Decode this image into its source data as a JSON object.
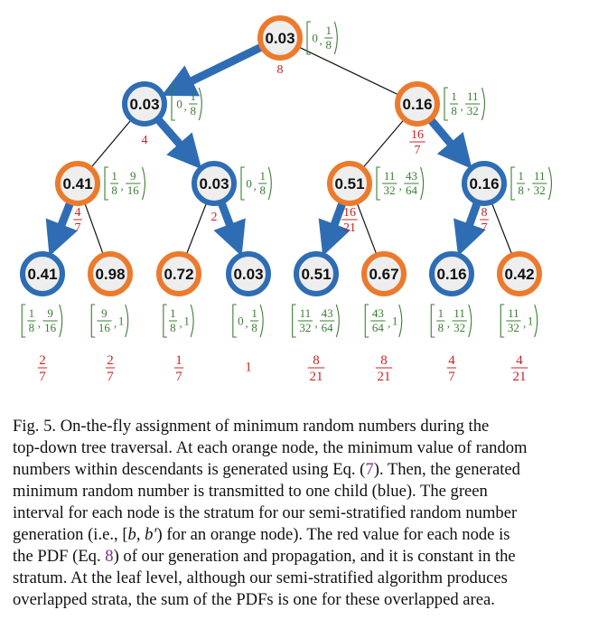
{
  "figure": {
    "colors": {
      "orange": "#ec7a2c",
      "blue": "#2e6db4",
      "node_fill": "#eeeeee",
      "green": "#3a7d32",
      "red": "#cc1f1f"
    },
    "nodes": [
      {
        "id": "root",
        "value": "0.03",
        "role": "orange",
        "interval": {
          "left": "[",
          "lo": {
            "type": "int",
            "v": "0"
          },
          "hi": {
            "type": "frac",
            "n": "1",
            "d": "8"
          },
          "right": ")"
        },
        "pdf": {
          "type": "int",
          "v": "8"
        }
      },
      {
        "id": "l1a",
        "value": "0.03",
        "role": "blue",
        "interval": {
          "left": "[",
          "lo": {
            "type": "int",
            "v": "0"
          },
          "hi": {
            "type": "frac",
            "n": "1",
            "d": "8"
          },
          "right": ")"
        },
        "pdf": {
          "type": "int",
          "v": "4"
        }
      },
      {
        "id": "l1b",
        "value": "0.16",
        "role": "orange",
        "interval": {
          "left": "[",
          "lo": {
            "type": "frac",
            "n": "1",
            "d": "8"
          },
          "hi": {
            "type": "frac",
            "n": "11",
            "d": "32"
          },
          "right": ")"
        },
        "pdf": {
          "type": "frac",
          "n": "16",
          "d": "7"
        }
      },
      {
        "id": "l2a",
        "value": "0.41",
        "role": "orange",
        "interval": {
          "left": "[",
          "lo": {
            "type": "frac",
            "n": "1",
            "d": "8"
          },
          "hi": {
            "type": "frac",
            "n": "9",
            "d": "16"
          },
          "right": ")"
        },
        "pdf": {
          "type": "frac",
          "n": "4",
          "d": "7"
        }
      },
      {
        "id": "l2b",
        "value": "0.03",
        "role": "blue",
        "interval": {
          "left": "[",
          "lo": {
            "type": "int",
            "v": "0"
          },
          "hi": {
            "type": "frac",
            "n": "1",
            "d": "8"
          },
          "right": ")"
        },
        "pdf": {
          "type": "int",
          "v": "2"
        }
      },
      {
        "id": "l2c",
        "value": "0.51",
        "role": "orange",
        "interval": {
          "left": "[",
          "lo": {
            "type": "frac",
            "n": "11",
            "d": "32"
          },
          "hi": {
            "type": "frac",
            "n": "43",
            "d": "64"
          },
          "right": ")"
        },
        "pdf": {
          "type": "frac",
          "n": "16",
          "d": "21"
        }
      },
      {
        "id": "l2d",
        "value": "0.16",
        "role": "blue",
        "interval": {
          "left": "[",
          "lo": {
            "type": "frac",
            "n": "1",
            "d": "8"
          },
          "hi": {
            "type": "frac",
            "n": "11",
            "d": "32"
          },
          "right": ")"
        },
        "pdf": {
          "type": "frac",
          "n": "8",
          "d": "7"
        }
      },
      {
        "id": "leaf1",
        "value": "0.41",
        "role": "blue",
        "interval": {
          "left": "[",
          "lo": {
            "type": "frac",
            "n": "1",
            "d": "8"
          },
          "hi": {
            "type": "frac",
            "n": "9",
            "d": "16"
          },
          "right": ")"
        },
        "pdf": {
          "type": "frac",
          "n": "2",
          "d": "7"
        }
      },
      {
        "id": "leaf2",
        "value": "0.98",
        "role": "orange",
        "interval": {
          "left": "[",
          "lo": {
            "type": "frac",
            "n": "9",
            "d": "16"
          },
          "hi": {
            "type": "int",
            "v": "1"
          },
          "right": ")"
        },
        "pdf": {
          "type": "frac",
          "n": "2",
          "d": "7"
        }
      },
      {
        "id": "leaf3",
        "value": "0.72",
        "role": "orange",
        "interval": {
          "left": "[",
          "lo": {
            "type": "frac",
            "n": "1",
            "d": "8"
          },
          "hi": {
            "type": "int",
            "v": "1"
          },
          "right": ")"
        },
        "pdf": {
          "type": "frac",
          "n": "1",
          "d": "7"
        }
      },
      {
        "id": "leaf4",
        "value": "0.03",
        "role": "blue",
        "interval": {
          "left": "[",
          "lo": {
            "type": "int",
            "v": "0"
          },
          "hi": {
            "type": "frac",
            "n": "1",
            "d": "8"
          },
          "right": ")"
        },
        "pdf": {
          "type": "int",
          "v": "1"
        }
      },
      {
        "id": "leaf5",
        "value": "0.51",
        "role": "blue",
        "interval": {
          "left": "[",
          "lo": {
            "type": "frac",
            "n": "11",
            "d": "32"
          },
          "hi": {
            "type": "frac",
            "n": "43",
            "d": "64"
          },
          "right": ")"
        },
        "pdf": {
          "type": "frac",
          "n": "8",
          "d": "21"
        }
      },
      {
        "id": "leaf6",
        "value": "0.67",
        "role": "orange",
        "interval": {
          "left": "[",
          "lo": {
            "type": "frac",
            "n": "43",
            "d": "64"
          },
          "hi": {
            "type": "int",
            "v": "1"
          },
          "right": ")"
        },
        "pdf": {
          "type": "frac",
          "n": "8",
          "d": "21"
        }
      },
      {
        "id": "leaf7",
        "value": "0.16",
        "role": "blue",
        "interval": {
          "left": "[",
          "lo": {
            "type": "frac",
            "n": "1",
            "d": "8"
          },
          "hi": {
            "type": "frac",
            "n": "11",
            "d": "32"
          },
          "right": ")"
        },
        "pdf": {
          "type": "frac",
          "n": "4",
          "d": "7"
        }
      },
      {
        "id": "leaf8",
        "value": "0.42",
        "role": "orange",
        "interval": {
          "left": "[",
          "lo": {
            "type": "frac",
            "n": "11",
            "d": "32"
          },
          "hi": {
            "type": "int",
            "v": "1"
          },
          "right": ")"
        },
        "pdf": {
          "type": "frac",
          "n": "4",
          "d": "21"
        }
      }
    ],
    "edges": [
      {
        "from": "root",
        "to": "l1a",
        "thick": true
      },
      {
        "from": "root",
        "to": "l1b",
        "thick": false
      },
      {
        "from": "l1a",
        "to": "l2a",
        "thick": false
      },
      {
        "from": "l1a",
        "to": "l2b",
        "thick": true
      },
      {
        "from": "l1b",
        "to": "l2c",
        "thick": false
      },
      {
        "from": "l1b",
        "to": "l2d",
        "thick": true
      },
      {
        "from": "l2a",
        "to": "leaf1",
        "thick": true
      },
      {
        "from": "l2a",
        "to": "leaf2",
        "thick": false
      },
      {
        "from": "l2b",
        "to": "leaf3",
        "thick": false
      },
      {
        "from": "l2b",
        "to": "leaf4",
        "thick": true
      },
      {
        "from": "l2c",
        "to": "leaf5",
        "thick": true
      },
      {
        "from": "l2c",
        "to": "leaf6",
        "thick": false
      },
      {
        "from": "l2d",
        "to": "leaf7",
        "thick": true
      },
      {
        "from": "l2d",
        "to": "leaf8",
        "thick": false
      }
    ]
  },
  "caption": {
    "line1": {
      "pre": "Fig. 5.  On-the-fly assignment of minimum random numbers during the"
    },
    "line2": {
      "pre": "top-down tree traversal. At each orange node, the minimum value of random"
    },
    "line3": {
      "pre": "numbers within descendants is generated using Eq. (",
      "ref": "7",
      "post": "). Then, the generated"
    },
    "line4": {
      "pre": "minimum random number is transmitted to one child (blue). The green"
    },
    "line5": {
      "pre": "interval for each node is the stratum for our semi-stratified random number"
    },
    "line6": {
      "pre": "generation (i.e., [",
      "math": "b, b′",
      "post": ") for an orange node). The red value for each node is"
    },
    "line7": {
      "pre": "the PDF (Eq. ",
      "ref": "8",
      "post": ") of our generation and propagation, and it is constant in the"
    },
    "line8": {
      "pre": "stratum. At the leaf level, although our semi-stratified algorithm produces"
    },
    "line9": {
      "pre": "overlapped strata, the sum of the PDFs is one for these overlapped area."
    }
  }
}
